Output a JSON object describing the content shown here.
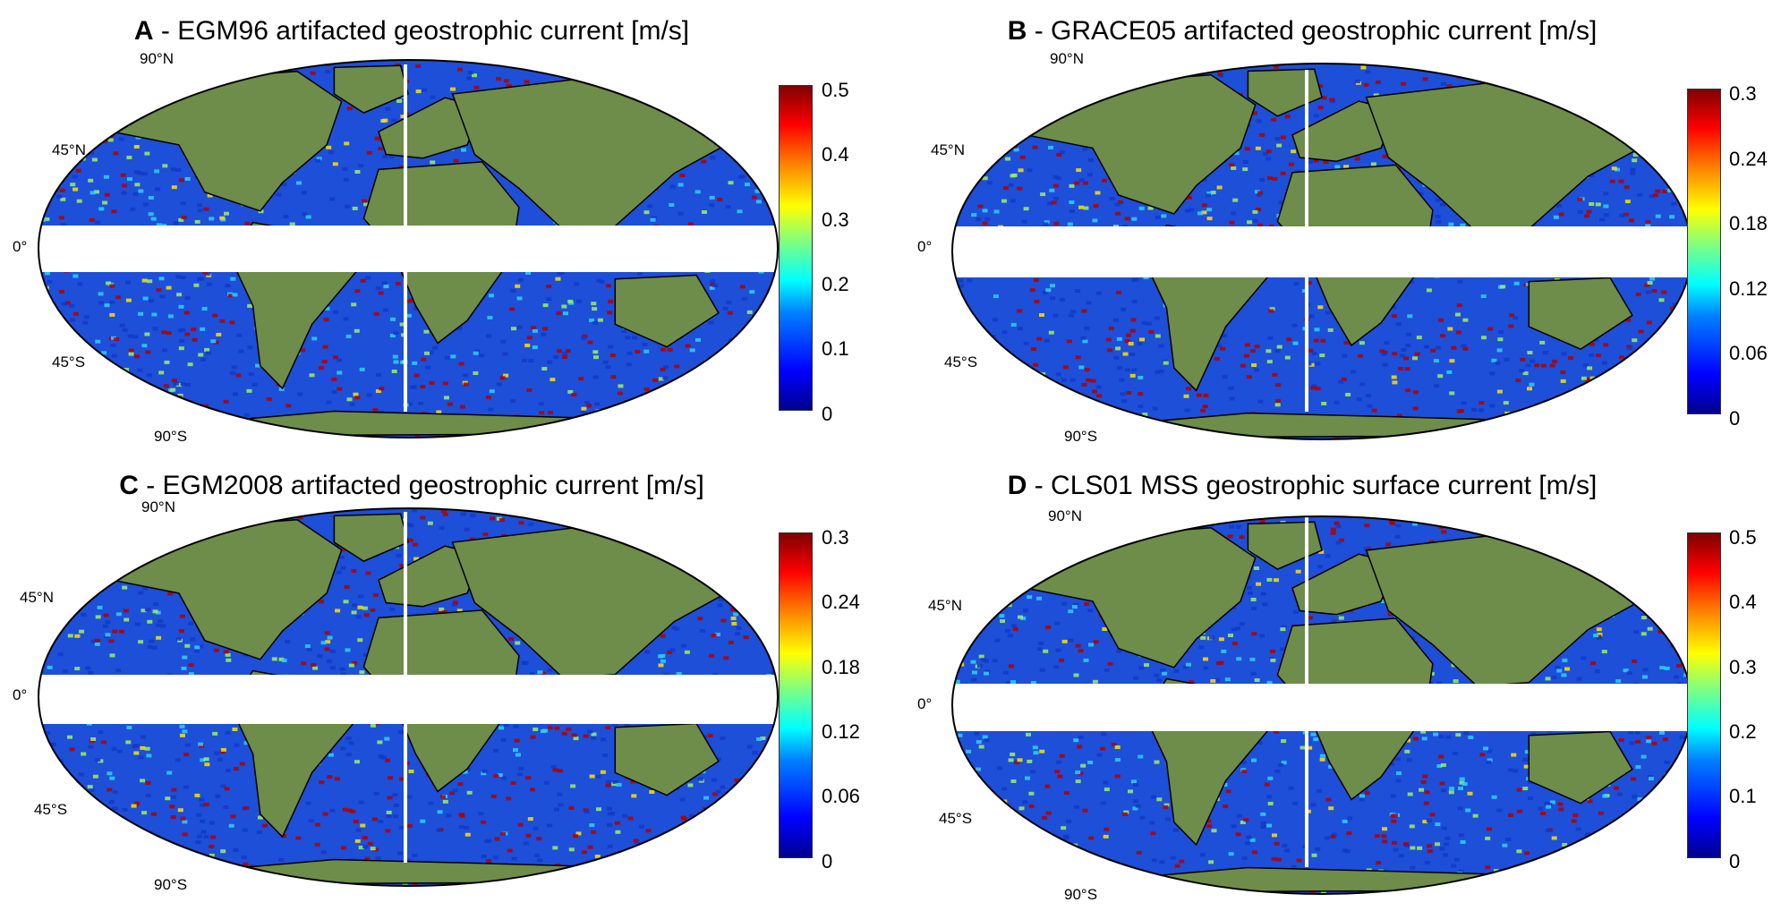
{
  "panels": [
    {
      "letter": "A",
      "title_rest": " - EGM96 artifacted geostrophic current [m/s]",
      "lat_labels": {
        "n90": "90°N",
        "n45": "45°N",
        "eq": "0°",
        "s45": "45°S",
        "s90": "90°S"
      },
      "colorbar": {
        "ticks": [
          "0.5",
          "0.4",
          "0.3",
          "0.2",
          "0.1",
          "0"
        ],
        "range": [
          0,
          0.5
        ],
        "colormap": "jet"
      }
    },
    {
      "letter": "B",
      "title_rest": " - GRACE05 artifacted geostrophic  current [m/s]",
      "lat_labels": {
        "n90": "90°N",
        "n45": "45°N",
        "eq": "0°",
        "s45": "45°S",
        "s90": "90°S"
      },
      "colorbar": {
        "ticks": [
          "0.3",
          "0.24",
          "0.18",
          "0.12",
          "0.06",
          "0"
        ],
        "range": [
          0,
          0.3
        ],
        "colormap": "jet"
      }
    },
    {
      "letter": "C",
      "title_rest": " - EGM2008 artifacted geostrophic current [m/s]",
      "lat_labels": {
        "n90": "90°N",
        "n45": "45°N",
        "eq": "0°",
        "s45": "45°S",
        "s90": "90°S"
      },
      "colorbar": {
        "ticks": [
          "0.3",
          "0.24",
          "0.18",
          "0.12",
          "0.06",
          "0"
        ],
        "range": [
          0,
          0.3
        ],
        "colormap": "jet"
      }
    },
    {
      "letter": "D",
      "title_rest": " - CLS01 MSS geostrophic surface current [m/s]",
      "lat_labels": {
        "n90": "90°N",
        "n45": "45°N",
        "eq": "0°",
        "s45": "45°S",
        "s90": "90°S"
      },
      "colorbar": {
        "ticks": [
          "0.5",
          "0.4",
          "0.3",
          "0.2",
          "0.1",
          "0"
        ],
        "range": [
          0,
          0.5
        ],
        "colormap": "jet"
      }
    }
  ],
  "colors": {
    "land": "#6e8c4a",
    "ocean_low": "#1e4fd8",
    "ocean_high": "#b00000",
    "masked": "#ffffff"
  }
}
